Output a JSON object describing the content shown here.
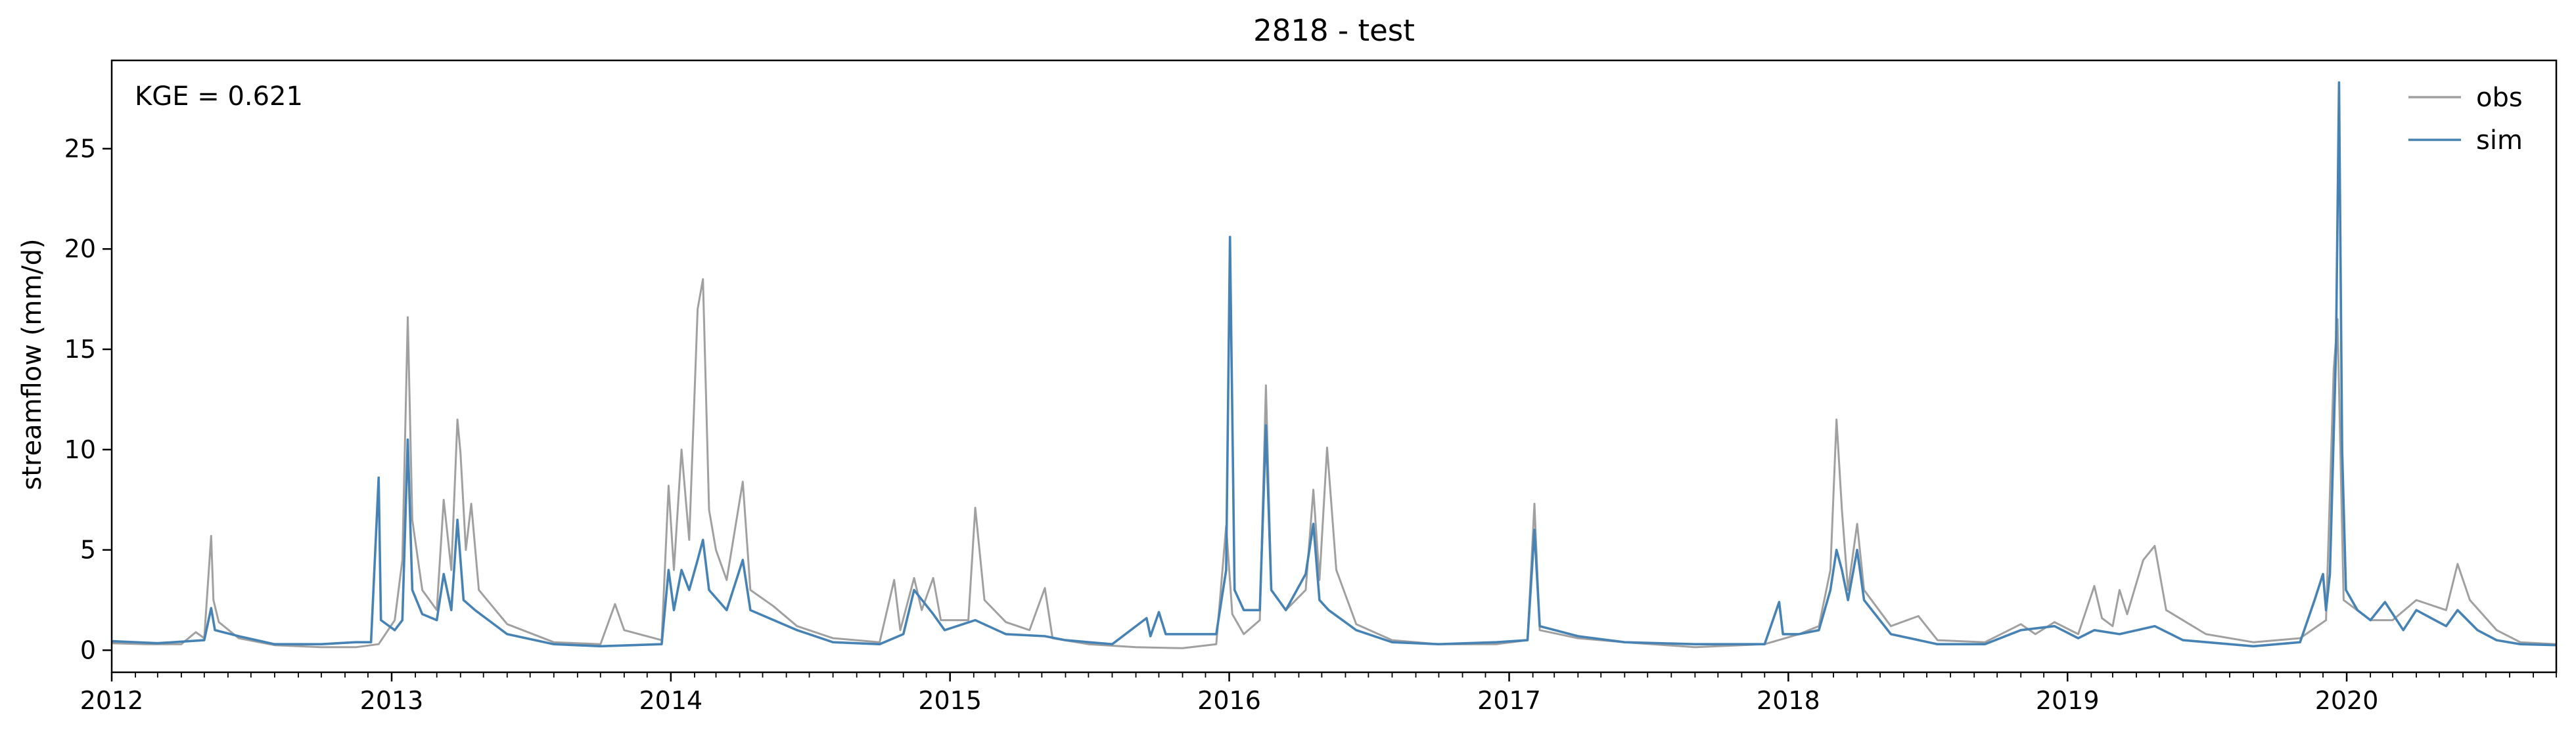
{
  "chart_data": {
    "type": "line",
    "title": "2818 - test",
    "xlabel": "",
    "ylabel": "streamflow (mm/d)",
    "annotation": "KGE = 0.621",
    "x_ticks": [
      "2012",
      "2013",
      "2014",
      "2015",
      "2016",
      "2017",
      "2018",
      "2019",
      "2020"
    ],
    "y_ticks": [
      "0",
      "5",
      "10",
      "15",
      "20",
      "25"
    ],
    "xlim": [
      "2012-01-01",
      "2020-10-01"
    ],
    "ylim": [
      -1.1,
      29.4
    ],
    "grid": false,
    "legend_position": "top-right",
    "series": [
      {
        "name": "obs",
        "color": "#a0a0a0",
        "points": [
          [
            "2012-01-01",
            0.35
          ],
          [
            "2012-02-15",
            0.3
          ],
          [
            "2012-04-01",
            0.3
          ],
          [
            "2012-04-20",
            0.9
          ],
          [
            "2012-05-01",
            0.6
          ],
          [
            "2012-05-10",
            5.7
          ],
          [
            "2012-05-13",
            2.5
          ],
          [
            "2012-05-20",
            1.4
          ],
          [
            "2012-06-15",
            0.6
          ],
          [
            "2012-08-01",
            0.25
          ],
          [
            "2012-10-01",
            0.15
          ],
          [
            "2012-11-15",
            0.15
          ],
          [
            "2012-12-15",
            0.3
          ],
          [
            "2013-01-05",
            1.5
          ],
          [
            "2013-01-15",
            4.5
          ],
          [
            "2013-01-22",
            16.6
          ],
          [
            "2013-01-28",
            6.5
          ],
          [
            "2013-02-10",
            3.0
          ],
          [
            "2013-03-01",
            2.0
          ],
          [
            "2013-03-10",
            7.5
          ],
          [
            "2013-03-20",
            4.0
          ],
          [
            "2013-03-28",
            11.5
          ],
          [
            "2013-04-01",
            9.8
          ],
          [
            "2013-04-08",
            5.0
          ],
          [
            "2013-04-15",
            7.3
          ],
          [
            "2013-04-25",
            3.0
          ],
          [
            "2013-06-01",
            1.3
          ],
          [
            "2013-08-01",
            0.4
          ],
          [
            "2013-10-01",
            0.3
          ],
          [
            "2013-10-20",
            2.3
          ],
          [
            "2013-11-01",
            1.0
          ],
          [
            "2013-12-20",
            0.5
          ],
          [
            "2013-12-29",
            8.2
          ],
          [
            "2014-01-05",
            4.0
          ],
          [
            "2014-01-15",
            10.0
          ],
          [
            "2014-01-25",
            5.5
          ],
          [
            "2014-02-05",
            17.0
          ],
          [
            "2014-02-12",
            18.5
          ],
          [
            "2014-02-20",
            7.0
          ],
          [
            "2014-03-01",
            5.0
          ],
          [
            "2014-03-15",
            3.5
          ],
          [
            "2014-04-05",
            8.4
          ],
          [
            "2014-04-15",
            3.0
          ],
          [
            "2014-05-15",
            2.2
          ],
          [
            "2014-06-15",
            1.2
          ],
          [
            "2014-08-01",
            0.6
          ],
          [
            "2014-10-01",
            0.4
          ],
          [
            "2014-10-20",
            3.5
          ],
          [
            "2014-10-28",
            1.0
          ],
          [
            "2014-11-15",
            3.6
          ],
          [
            "2014-11-25",
            2.0
          ],
          [
            "2014-12-10",
            3.6
          ],
          [
            "2014-12-20",
            1.5
          ],
          [
            "2015-01-25",
            1.5
          ],
          [
            "2015-02-03",
            7.1
          ],
          [
            "2015-02-15",
            2.5
          ],
          [
            "2015-03-15",
            1.4
          ],
          [
            "2015-04-15",
            1.0
          ],
          [
            "2015-05-05",
            3.1
          ],
          [
            "2015-05-15",
            0.6
          ],
          [
            "2015-07-01",
            0.3
          ],
          [
            "2015-09-01",
            0.15
          ],
          [
            "2015-11-01",
            0.1
          ],
          [
            "2015-12-15",
            0.3
          ],
          [
            "2015-12-28",
            6.2
          ],
          [
            "2016-01-05",
            1.8
          ],
          [
            "2016-01-20",
            0.8
          ],
          [
            "2016-02-10",
            1.5
          ],
          [
            "2016-02-18",
            13.2
          ],
          [
            "2016-02-25",
            3.0
          ],
          [
            "2016-03-15",
            2.0
          ],
          [
            "2016-04-10",
            3.0
          ],
          [
            "2016-04-20",
            8.0
          ],
          [
            "2016-04-28",
            3.5
          ],
          [
            "2016-05-08",
            10.1
          ],
          [
            "2016-05-20",
            4.0
          ],
          [
            "2016-06-15",
            1.3
          ],
          [
            "2016-08-01",
            0.5
          ],
          [
            "2016-10-01",
            0.3
          ],
          [
            "2016-12-15",
            0.3
          ],
          [
            "2017-01-25",
            0.5
          ],
          [
            "2017-02-03",
            7.3
          ],
          [
            "2017-02-10",
            1.0
          ],
          [
            "2017-04-01",
            0.6
          ],
          [
            "2017-06-01",
            0.4
          ],
          [
            "2017-09-01",
            0.15
          ],
          [
            "2017-12-01",
            0.3
          ],
          [
            "2018-01-15",
            0.8
          ],
          [
            "2018-02-10",
            1.2
          ],
          [
            "2018-02-25",
            4.0
          ],
          [
            "2018-03-05",
            11.5
          ],
          [
            "2018-03-12",
            7.0
          ],
          [
            "2018-03-20",
            3.0
          ],
          [
            "2018-04-01",
            6.3
          ],
          [
            "2018-04-10",
            3.0
          ],
          [
            "2018-05-15",
            1.2
          ],
          [
            "2018-06-20",
            1.7
          ],
          [
            "2018-07-15",
            0.5
          ],
          [
            "2018-09-15",
            0.4
          ],
          [
            "2018-11-01",
            1.3
          ],
          [
            "2018-11-20",
            0.8
          ],
          [
            "2018-12-15",
            1.4
          ],
          [
            "2019-01-15",
            0.8
          ],
          [
            "2019-02-05",
            3.2
          ],
          [
            "2019-02-15",
            1.6
          ],
          [
            "2019-03-01",
            1.2
          ],
          [
            "2019-03-10",
            3.0
          ],
          [
            "2019-03-20",
            1.8
          ],
          [
            "2019-04-10",
            4.5
          ],
          [
            "2019-04-25",
            5.2
          ],
          [
            "2019-05-10",
            2.0
          ],
          [
            "2019-07-01",
            0.8
          ],
          [
            "2019-09-01",
            0.4
          ],
          [
            "2019-11-01",
            0.6
          ],
          [
            "2019-12-05",
            1.5
          ],
          [
            "2019-12-15",
            14.0
          ],
          [
            "2019-12-20",
            16.5
          ],
          [
            "2019-12-28",
            2.5
          ],
          [
            "2020-02-01",
            1.5
          ],
          [
            "2020-03-01",
            1.5
          ],
          [
            "2020-04-01",
            2.5
          ],
          [
            "2020-05-10",
            2.0
          ],
          [
            "2020-05-25",
            4.3
          ],
          [
            "2020-06-10",
            2.5
          ],
          [
            "2020-07-15",
            1.0
          ],
          [
            "2020-08-15",
            0.4
          ],
          [
            "2020-10-01",
            0.3
          ]
        ]
      },
      {
        "name": "sim",
        "color": "#4682b4",
        "points": [
          [
            "2012-01-01",
            0.45
          ],
          [
            "2012-03-01",
            0.35
          ],
          [
            "2012-05-01",
            0.5
          ],
          [
            "2012-05-10",
            2.1
          ],
          [
            "2012-05-15",
            1.0
          ],
          [
            "2012-06-15",
            0.7
          ],
          [
            "2012-08-01",
            0.3
          ],
          [
            "2012-10-01",
            0.3
          ],
          [
            "2012-11-15",
            0.4
          ],
          [
            "2012-12-05",
            0.4
          ],
          [
            "2012-12-15",
            8.6
          ],
          [
            "2012-12-18",
            1.5
          ],
          [
            "2013-01-05",
            1.0
          ],
          [
            "2013-01-15",
            1.5
          ],
          [
            "2013-01-22",
            10.5
          ],
          [
            "2013-01-28",
            3.0
          ],
          [
            "2013-02-10",
            1.8
          ],
          [
            "2013-03-01",
            1.5
          ],
          [
            "2013-03-10",
            3.8
          ],
          [
            "2013-03-20",
            2.0
          ],
          [
            "2013-03-28",
            6.5
          ],
          [
            "2013-04-05",
            2.5
          ],
          [
            "2013-04-20",
            2.0
          ],
          [
            "2013-06-01",
            0.8
          ],
          [
            "2013-08-01",
            0.3
          ],
          [
            "2013-10-01",
            0.2
          ],
          [
            "2013-12-20",
            0.3
          ],
          [
            "2013-12-29",
            4.0
          ],
          [
            "2014-01-05",
            2.0
          ],
          [
            "2014-01-15",
            4.0
          ],
          [
            "2014-01-25",
            3.0
          ],
          [
            "2014-02-05",
            4.5
          ],
          [
            "2014-02-12",
            5.5
          ],
          [
            "2014-02-20",
            3.0
          ],
          [
            "2014-03-15",
            2.0
          ],
          [
            "2014-04-05",
            4.5
          ],
          [
            "2014-04-15",
            2.0
          ],
          [
            "2014-06-15",
            1.0
          ],
          [
            "2014-08-01",
            0.4
          ],
          [
            "2014-10-01",
            0.3
          ],
          [
            "2014-11-01",
            0.8
          ],
          [
            "2014-11-15",
            3.0
          ],
          [
            "2014-12-10",
            1.8
          ],
          [
            "2014-12-25",
            1.0
          ],
          [
            "2015-02-03",
            1.5
          ],
          [
            "2015-03-15",
            0.8
          ],
          [
            "2015-05-05",
            0.7
          ],
          [
            "2015-06-01",
            0.5
          ],
          [
            "2015-08-01",
            0.3
          ],
          [
            "2015-09-15",
            1.6
          ],
          [
            "2015-09-20",
            0.7
          ],
          [
            "2015-10-01",
            1.9
          ],
          [
            "2015-10-10",
            0.8
          ],
          [
            "2015-11-01",
            0.8
          ],
          [
            "2015-12-15",
            0.8
          ],
          [
            "2015-12-28",
            4.0
          ],
          [
            "2016-01-02",
            20.6
          ],
          [
            "2016-01-08",
            3.0
          ],
          [
            "2016-01-20",
            2.0
          ],
          [
            "2016-02-10",
            2.0
          ],
          [
            "2016-02-18",
            11.2
          ],
          [
            "2016-02-25",
            3.0
          ],
          [
            "2016-03-15",
            2.0
          ],
          [
            "2016-04-10",
            3.8
          ],
          [
            "2016-04-20",
            6.3
          ],
          [
            "2016-04-28",
            2.5
          ],
          [
            "2016-05-10",
            2.0
          ],
          [
            "2016-06-15",
            1.0
          ],
          [
            "2016-08-01",
            0.4
          ],
          [
            "2016-10-01",
            0.3
          ],
          [
            "2016-12-15",
            0.4
          ],
          [
            "2017-01-25",
            0.5
          ],
          [
            "2017-02-03",
            6.0
          ],
          [
            "2017-02-10",
            1.2
          ],
          [
            "2017-04-01",
            0.7
          ],
          [
            "2017-06-01",
            0.4
          ],
          [
            "2017-09-01",
            0.3
          ],
          [
            "2017-12-01",
            0.3
          ],
          [
            "2017-12-20",
            2.4
          ],
          [
            "2017-12-25",
            0.8
          ],
          [
            "2018-01-15",
            0.8
          ],
          [
            "2018-02-10",
            1.0
          ],
          [
            "2018-02-25",
            3.0
          ],
          [
            "2018-03-05",
            5.0
          ],
          [
            "2018-03-12",
            4.0
          ],
          [
            "2018-03-20",
            2.5
          ],
          [
            "2018-04-01",
            5.0
          ],
          [
            "2018-04-10",
            2.5
          ],
          [
            "2018-05-15",
            0.8
          ],
          [
            "2018-07-15",
            0.3
          ],
          [
            "2018-09-15",
            0.3
          ],
          [
            "2018-11-01",
            1.0
          ],
          [
            "2018-12-15",
            1.2
          ],
          [
            "2019-01-15",
            0.6
          ],
          [
            "2019-02-05",
            1.0
          ],
          [
            "2019-03-10",
            0.8
          ],
          [
            "2019-04-25",
            1.2
          ],
          [
            "2019-06-01",
            0.5
          ],
          [
            "2019-09-01",
            0.2
          ],
          [
            "2019-11-01",
            0.4
          ],
          [
            "2019-11-20",
            2.5
          ],
          [
            "2019-12-01",
            3.8
          ],
          [
            "2019-12-05",
            2.0
          ],
          [
            "2019-12-10",
            3.8
          ],
          [
            "2019-12-18",
            15.0
          ],
          [
            "2019-12-22",
            28.3
          ],
          [
            "2019-12-26",
            10.0
          ],
          [
            "2019-12-31",
            3.0
          ],
          [
            "2020-01-15",
            2.0
          ],
          [
            "2020-02-01",
            1.5
          ],
          [
            "2020-02-20",
            2.4
          ],
          [
            "2020-03-15",
            1.0
          ],
          [
            "2020-04-01",
            2.0
          ],
          [
            "2020-05-10",
            1.2
          ],
          [
            "2020-05-25",
            2.0
          ],
          [
            "2020-06-20",
            1.0
          ],
          [
            "2020-07-15",
            0.5
          ],
          [
            "2020-08-15",
            0.3
          ],
          [
            "2020-10-01",
            0.25
          ]
        ]
      }
    ]
  }
}
